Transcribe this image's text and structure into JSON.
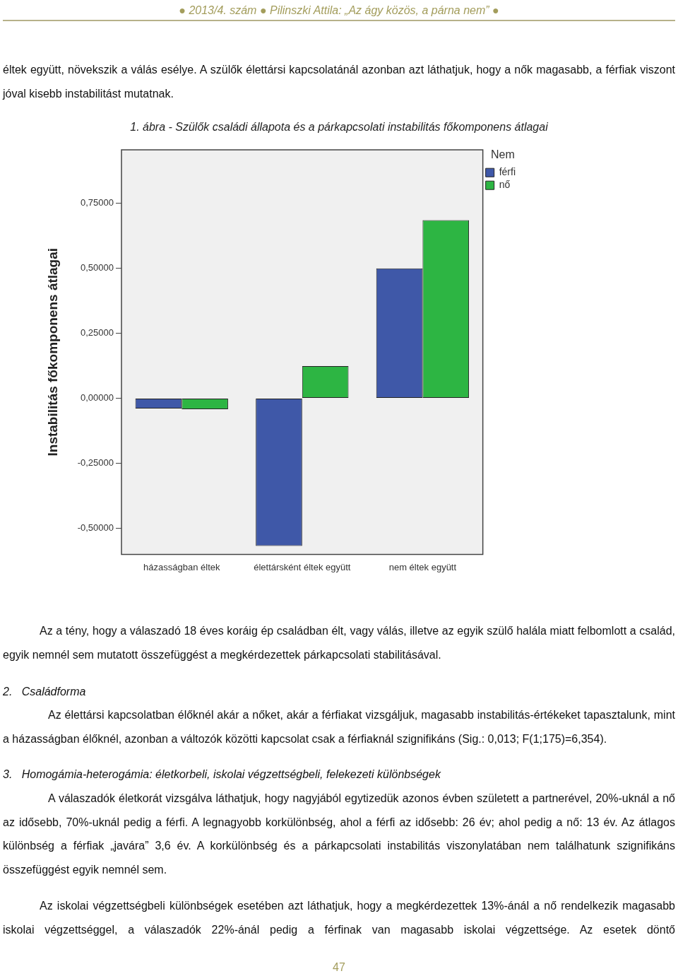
{
  "chart_data": {
    "type": "bar",
    "title": "1. ábra - Szülők családi állapota és a párkapcsolati instabilitás főkomponens átlagai",
    "ylabel": "Instabilitás főkomponens átlagai",
    "legend_title": "Nem",
    "legend": "top right",
    "grid": false,
    "categories": [
      "házasságban éltek",
      "élettársként éltek együtt",
      "nem éltek együtt"
    ],
    "series": [
      {
        "name": "férfi",
        "color": "#3f58a8",
        "values": [
          -0.039,
          -0.568,
          0.499
        ]
      },
      {
        "name": "nő",
        "color": "#2db543",
        "values": [
          -0.042,
          0.124,
          0.685
        ]
      }
    ],
    "ylim": [
      -0.6,
      0.955
    ],
    "yticks": [
      {
        "value": -0.5,
        "label": "-0,50000"
      },
      {
        "value": -0.25,
        "label": "-0,25000"
      },
      {
        "value": 0,
        "label": "0,00000"
      },
      {
        "value": 0.25,
        "label": "0,25000"
      },
      {
        "value": 0.5,
        "label": "0,50000"
      },
      {
        "value": 0.75,
        "label": "0,75000"
      }
    ],
    "annotations": [
      "● 2013/4. szám ● Pilinszki Attila: „Az ágy közös, a párna nem” ●",
      "éltek együtt, növekszik a válás esélye. A szülők élettársi kapcsolatánál azonban azt láthatjuk, hogy a nők magasabb, a férfiak viszont jóval kisebb instabilitást mutatnak.",
      "Az a tény, hogy a válaszadó 18 éves koráig ép családban élt, vagy válás, illetve az egyik szülő halála miatt felbomlott a család, egyik nemnél sem mutatott összefüggést a megkérdezettek párkapcsolati stabilitásával.",
      "2.   Családforma",
      "Az élettársi kapcsolatban élőknél akár a nőket, akár a férfiakat vizsgáljuk, magasabb instabilitás-értékeket tapasztalunk, mint a házasságban élőknél, azonban a változók közötti kapcsolat csak a férfiaknál szignifikáns (Sig.: 0,013; F(1;175)=6,354).",
      "3.   Homogámia-heterogámia: életkorbeli, iskolai végzettségbeli, felekezeti különbségek",
      "A válaszadók életkorát vizsgálva láthatjuk, hogy nagyjából egytizedük azonos évben született a partnerével, 20%-uknál a nő az idősebb, 70%-uknál pedig a férfi. A legnagyobb korkülönbség, ahol a férfi az idősebb: 26 év; ahol pedig a nő: 13 év. Az átlagos különbség a férfiak „javára” 3,6 év. A korkülönbség és a párkapcsolati instabilitás viszonylatában nem találhatunk szignifikáns összefüggést egyik nemnél sem.",
      "Az iskolai végzettségbeli különbségek esetében azt láthatjuk, hogy a megkérdezettek 13%-ánál a nő rendelkezik magasabb iskolai végzettséggel, a válaszadók 22%-ánál pedig a férfinak van magasabb iskolai végzettsége. Az esetek döntő",
      "47"
    ]
  }
}
